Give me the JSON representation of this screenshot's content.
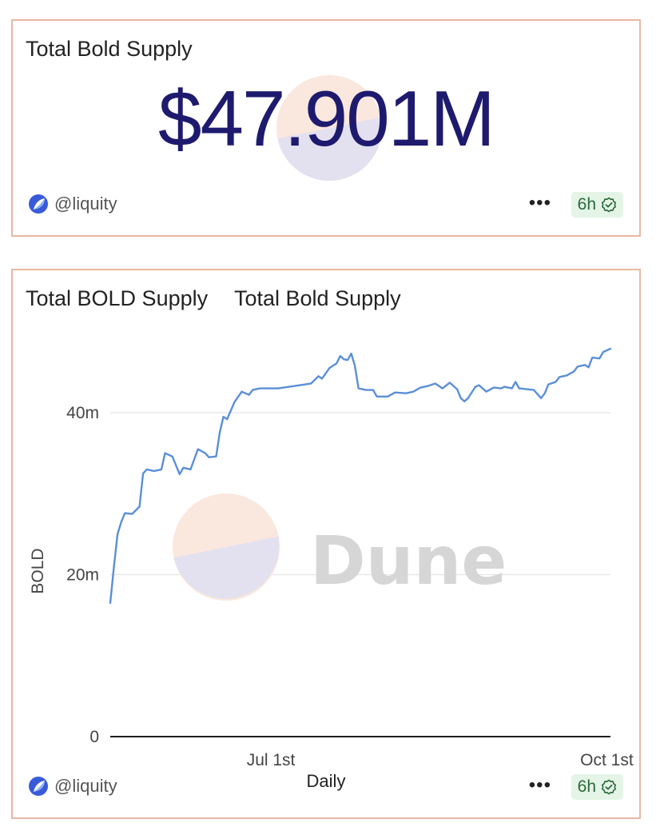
{
  "counter_card": {
    "title": "Total Bold Supply",
    "value": "$47.901M",
    "author": "@liquity",
    "more": "•••",
    "freshness": "6h"
  },
  "chart_card": {
    "title": "Total BOLD Supply",
    "subtitle": "Total Bold Supply",
    "author": "@liquity",
    "more": "•••",
    "freshness": "6h",
    "watermark": "Dune"
  },
  "colors": {
    "line": "#5b8fd8",
    "title_value": "#1e1a6e",
    "border": "#e8b7a5",
    "badge_bg": "#e4f4e6",
    "badge_fg": "#2a6a3a"
  },
  "chart_data": {
    "type": "line",
    "xlabel": "Daily",
    "ylabel": "BOLD",
    "x_tick_labels": [
      "Jul 1st",
      "Oct 1st"
    ],
    "y_tick_labels": [
      "0",
      "20m",
      "40m"
    ],
    "ylim": [
      0,
      50000000
    ],
    "xlim": [
      "2025-05-18",
      "2025-10-02"
    ],
    "grid": true,
    "series": [
      {
        "values": [
          [
            "2025-05-18",
            16500000
          ],
          [
            "2025-05-19",
            21000000
          ],
          [
            "2025-05-20",
            25000000
          ],
          [
            "2025-05-21",
            26500000
          ],
          [
            "2025-05-22",
            27600000
          ],
          [
            "2025-05-24",
            27500000
          ],
          [
            "2025-05-26",
            28400000
          ],
          [
            "2025-05-27",
            32500000
          ],
          [
            "2025-05-28",
            33000000
          ],
          [
            "2025-05-30",
            32800000
          ],
          [
            "2025-06-01",
            33000000
          ],
          [
            "2025-06-02",
            35000000
          ],
          [
            "2025-06-04",
            34600000
          ],
          [
            "2025-06-06",
            32400000
          ],
          [
            "2025-06-07",
            33200000
          ],
          [
            "2025-06-09",
            33000000
          ],
          [
            "2025-06-11",
            35500000
          ],
          [
            "2025-06-13",
            35000000
          ],
          [
            "2025-06-14",
            34500000
          ],
          [
            "2025-06-16",
            34600000
          ],
          [
            "2025-06-17",
            37600000
          ],
          [
            "2025-06-18",
            39500000
          ],
          [
            "2025-06-19",
            39200000
          ],
          [
            "2025-06-21",
            41300000
          ],
          [
            "2025-06-23",
            42600000
          ],
          [
            "2025-06-25",
            42200000
          ],
          [
            "2025-06-26",
            42800000
          ],
          [
            "2025-06-28",
            43000000
          ],
          [
            "2025-07-03",
            43000000
          ],
          [
            "2025-07-06",
            43200000
          ],
          [
            "2025-07-09",
            43400000
          ],
          [
            "2025-07-12",
            43600000
          ],
          [
            "2025-07-14",
            44500000
          ],
          [
            "2025-07-15",
            44200000
          ],
          [
            "2025-07-17",
            45500000
          ],
          [
            "2025-07-19",
            46100000
          ],
          [
            "2025-07-20",
            47000000
          ],
          [
            "2025-07-21",
            46600000
          ],
          [
            "2025-07-22",
            46500000
          ],
          [
            "2025-07-23",
            47300000
          ],
          [
            "2025-07-24",
            45800000
          ],
          [
            "2025-07-25",
            43000000
          ],
          [
            "2025-07-27",
            42800000
          ],
          [
            "2025-07-29",
            42800000
          ],
          [
            "2025-07-30",
            42000000
          ],
          [
            "2025-08-02",
            42000000
          ],
          [
            "2025-08-04",
            42500000
          ],
          [
            "2025-08-07",
            42400000
          ],
          [
            "2025-08-09",
            42600000
          ],
          [
            "2025-08-11",
            43100000
          ],
          [
            "2025-08-13",
            43300000
          ],
          [
            "2025-08-15",
            43600000
          ],
          [
            "2025-08-17",
            43000000
          ],
          [
            "2025-08-19",
            43700000
          ],
          [
            "2025-08-21",
            42900000
          ],
          [
            "2025-08-22",
            41800000
          ],
          [
            "2025-08-23",
            41400000
          ],
          [
            "2025-08-24",
            41800000
          ],
          [
            "2025-08-26",
            43200000
          ],
          [
            "2025-08-27",
            43400000
          ],
          [
            "2025-08-29",
            42600000
          ],
          [
            "2025-08-31",
            43100000
          ],
          [
            "2025-09-02",
            43000000
          ],
          [
            "2025-09-03",
            43200000
          ],
          [
            "2025-09-05",
            43000000
          ],
          [
            "2025-09-06",
            43800000
          ],
          [
            "2025-09-07",
            43000000
          ],
          [
            "2025-09-09",
            42900000
          ],
          [
            "2025-09-11",
            42800000
          ],
          [
            "2025-09-12",
            42300000
          ],
          [
            "2025-09-13",
            41800000
          ],
          [
            "2025-09-14",
            42400000
          ],
          [
            "2025-09-15",
            43500000
          ],
          [
            "2025-09-17",
            43800000
          ],
          [
            "2025-09-18",
            44400000
          ],
          [
            "2025-09-20",
            44600000
          ],
          [
            "2025-09-22",
            45100000
          ],
          [
            "2025-09-23",
            45700000
          ],
          [
            "2025-09-25",
            45900000
          ],
          [
            "2025-09-26",
            45600000
          ],
          [
            "2025-09-27",
            46800000
          ],
          [
            "2025-09-29",
            46700000
          ],
          [
            "2025-09-30",
            47500000
          ],
          [
            "2025-10-02",
            47900000
          ]
        ]
      }
    ]
  }
}
